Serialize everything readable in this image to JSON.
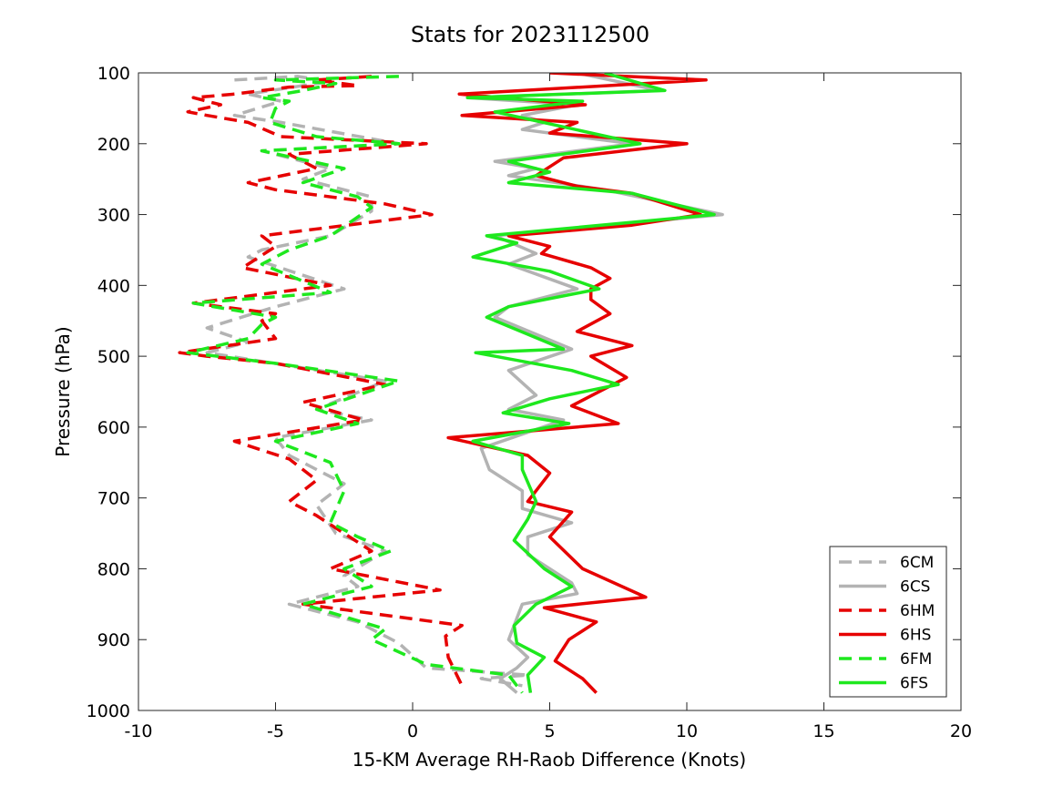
{
  "chart_data": {
    "type": "line",
    "title": "Stats for 2023112500",
    "xlabel": "15-KM Average RH-Raob Difference (Knots)",
    "ylabel": "Pressure (hPa)",
    "xlim": [
      -10,
      20
    ],
    "ylim": [
      1000,
      100
    ],
    "y_reversed": true,
    "grid": false,
    "legend_position": "bottom-right",
    "xticks": [
      -10,
      -5,
      0,
      5,
      10,
      15,
      20
    ],
    "xtick_labels": [
      "-10",
      "-5",
      "0",
      "5",
      "10",
      "15",
      "20"
    ],
    "yticks": [
      100,
      200,
      300,
      400,
      500,
      600,
      700,
      800,
      900,
      1000
    ],
    "ytick_labels": [
      "100",
      "200",
      "300",
      "400",
      "500",
      "600",
      "700",
      "800",
      "900",
      "1000"
    ],
    "series": [
      {
        "name": "6CM",
        "color": "#b3b3b3",
        "dashed": true,
        "points": [
          [
            -6.5,
            110
          ],
          [
            -4.2,
            105
          ],
          [
            -3,
            112
          ],
          [
            -6,
            130
          ],
          [
            -4.8,
            140
          ],
          [
            -6.5,
            160
          ],
          [
            -4.8,
            170
          ],
          [
            -0.5,
            200
          ],
          [
            -5.5,
            210
          ],
          [
            -3,
            235
          ],
          [
            -4,
            250
          ],
          [
            -1.5,
            275
          ],
          [
            -1.5,
            295
          ],
          [
            -3,
            330
          ],
          [
            -5.5,
            350
          ],
          [
            -6,
            360
          ],
          [
            -2.5,
            405
          ],
          [
            -5,
            430
          ],
          [
            -7.5,
            460
          ],
          [
            -6,
            480
          ],
          [
            -7.5,
            495
          ],
          [
            -1,
            535
          ],
          [
            -3.5,
            575
          ],
          [
            -1.5,
            590
          ],
          [
            -5,
            615
          ],
          [
            -4.5,
            640
          ],
          [
            -2.5,
            680
          ],
          [
            -3.5,
            710
          ],
          [
            -2.8,
            750
          ],
          [
            -1,
            775
          ],
          [
            -2.5,
            810
          ],
          [
            -2,
            825
          ],
          [
            -4.5,
            850
          ],
          [
            -2,
            875
          ],
          [
            -0.5,
            905
          ],
          [
            0.5,
            940
          ],
          [
            4.2,
            950
          ],
          [
            2.5,
            955
          ],
          [
            4,
            965
          ]
        ]
      },
      {
        "name": "6CS",
        "color": "#b3b3b3",
        "dashed": false,
        "points": [
          [
            6,
            100
          ],
          [
            9,
            125
          ],
          [
            2,
            135
          ],
          [
            6,
            145
          ],
          [
            4,
            160
          ],
          [
            4.8,
            170
          ],
          [
            4,
            180
          ],
          [
            8,
            200
          ],
          [
            3,
            225
          ],
          [
            4.5,
            235
          ],
          [
            3.5,
            245
          ],
          [
            7,
            265
          ],
          [
            11.3,
            300
          ],
          [
            3,
            330
          ],
          [
            4.5,
            355
          ],
          [
            3.5,
            370
          ],
          [
            6,
            405
          ],
          [
            3.5,
            430
          ],
          [
            3,
            445
          ],
          [
            5.8,
            490
          ],
          [
            3.5,
            520
          ],
          [
            4.5,
            555
          ],
          [
            3.5,
            575
          ],
          [
            5.5,
            590
          ],
          [
            2.5,
            630
          ],
          [
            2.8,
            660
          ],
          [
            4,
            690
          ],
          [
            4,
            715
          ],
          [
            5.8,
            735
          ],
          [
            4.2,
            755
          ],
          [
            4.2,
            780
          ],
          [
            5.8,
            820
          ],
          [
            6,
            835
          ],
          [
            4,
            850
          ],
          [
            3.5,
            900
          ],
          [
            4.2,
            925
          ],
          [
            3.8,
            940
          ],
          [
            3.2,
            955
          ],
          [
            3.8,
            975
          ]
        ]
      },
      {
        "name": "6HM",
        "color": "#e60000",
        "dashed": true,
        "points": [
          [
            -1.5,
            105
          ],
          [
            -3.5,
            110
          ],
          [
            -2,
            118
          ],
          [
            -4.5,
            120
          ],
          [
            -6.5,
            130
          ],
          [
            -8,
            135
          ],
          [
            -7,
            145
          ],
          [
            -8.2,
            155
          ],
          [
            -7.5,
            160
          ],
          [
            -6,
            170
          ],
          [
            -4.8,
            190
          ],
          [
            0.5,
            200
          ],
          [
            -4.5,
            215
          ],
          [
            -4,
            225
          ],
          [
            -3.5,
            235
          ],
          [
            -6,
            255
          ],
          [
            -5,
            265
          ],
          [
            -1,
            285
          ],
          [
            0.7,
            300
          ],
          [
            -5.5,
            330
          ],
          [
            -5,
            345
          ],
          [
            -6.2,
            375
          ],
          [
            -3,
            400
          ],
          [
            -8,
            425
          ],
          [
            -5,
            440
          ],
          [
            -5.5,
            450
          ],
          [
            -5,
            475
          ],
          [
            -8.5,
            495
          ],
          [
            -7.5,
            500
          ],
          [
            -5,
            510
          ],
          [
            -1,
            540
          ],
          [
            -4,
            565
          ],
          [
            -1.8,
            590
          ],
          [
            -6.5,
            620
          ],
          [
            -4.5,
            645
          ],
          [
            -3.5,
            675
          ],
          [
            -4.5,
            705
          ],
          [
            -3.5,
            725
          ],
          [
            -1.5,
            775
          ],
          [
            -3,
            800
          ],
          [
            1,
            830
          ],
          [
            -4,
            850
          ],
          [
            1.8,
            880
          ],
          [
            1.2,
            895
          ],
          [
            1.3,
            925
          ],
          [
            1.8,
            965
          ]
        ]
      },
      {
        "name": "6HS",
        "color": "#e60000",
        "dashed": false,
        "points": [
          [
            5,
            100
          ],
          [
            10.7,
            110
          ],
          [
            1.7,
            130
          ],
          [
            6.3,
            145
          ],
          [
            1.8,
            160
          ],
          [
            6,
            170
          ],
          [
            5,
            185
          ],
          [
            10,
            200
          ],
          [
            5.5,
            220
          ],
          [
            4.5,
            245
          ],
          [
            6,
            260
          ],
          [
            8,
            270
          ],
          [
            10.5,
            300
          ],
          [
            8,
            315
          ],
          [
            3.5,
            330
          ],
          [
            5,
            345
          ],
          [
            4.7,
            355
          ],
          [
            6.5,
            375
          ],
          [
            7.2,
            390
          ],
          [
            6.5,
            405
          ],
          [
            6.5,
            420
          ],
          [
            7.2,
            440
          ],
          [
            6,
            465
          ],
          [
            8,
            485
          ],
          [
            6.5,
            500
          ],
          [
            7.8,
            530
          ],
          [
            5.8,
            570
          ],
          [
            7.5,
            595
          ],
          [
            1.3,
            615
          ],
          [
            4.2,
            640
          ],
          [
            5,
            665
          ],
          [
            4.2,
            705
          ],
          [
            5.8,
            720
          ],
          [
            5,
            755
          ],
          [
            6.2,
            800
          ],
          [
            8.5,
            840
          ],
          [
            4.8,
            855
          ],
          [
            6.7,
            875
          ],
          [
            5.7,
            900
          ],
          [
            5.2,
            930
          ],
          [
            6.2,
            955
          ],
          [
            6.7,
            975
          ]
        ]
      },
      {
        "name": "6FM",
        "color": "#1ee81e",
        "dashed": true,
        "points": [
          [
            -0.5,
            105
          ],
          [
            -5,
            110
          ],
          [
            -2.8,
            115
          ],
          [
            -4,
            125
          ],
          [
            -5.5,
            135
          ],
          [
            -4.5,
            140
          ],
          [
            -5,
            150
          ],
          [
            -5.2,
            170
          ],
          [
            -3.5,
            190
          ],
          [
            -0.5,
            200
          ],
          [
            -5.5,
            210
          ],
          [
            -2.5,
            235
          ],
          [
            -4,
            255
          ],
          [
            -2,
            275
          ],
          [
            -1.5,
            290
          ],
          [
            -3,
            330
          ],
          [
            -4.5,
            350
          ],
          [
            -5.5,
            370
          ],
          [
            -3,
            410
          ],
          [
            -8,
            425
          ],
          [
            -5,
            445
          ],
          [
            -5.5,
            455
          ],
          [
            -6,
            475
          ],
          [
            -8.2,
            495
          ],
          [
            -5,
            510
          ],
          [
            -0.5,
            535
          ],
          [
            -3.5,
            575
          ],
          [
            -2,
            595
          ],
          [
            -5,
            620
          ],
          [
            -3,
            650
          ],
          [
            -2.5,
            690
          ],
          [
            -3,
            735
          ],
          [
            -2,
            755
          ],
          [
            -0.8,
            775
          ],
          [
            -2.5,
            800
          ],
          [
            -1.5,
            825
          ],
          [
            -4,
            850
          ],
          [
            -1,
            885
          ],
          [
            -1.5,
            900
          ],
          [
            0.5,
            935
          ],
          [
            3.5,
            950
          ],
          [
            4,
            975
          ]
        ]
      },
      {
        "name": "6FS",
        "color": "#1ee81e",
        "dashed": false,
        "points": [
          [
            7,
            100
          ],
          [
            9.2,
            125
          ],
          [
            2,
            135
          ],
          [
            6.2,
            140
          ],
          [
            3,
            155
          ],
          [
            8.3,
            200
          ],
          [
            3.5,
            225
          ],
          [
            5,
            240
          ],
          [
            3.5,
            255
          ],
          [
            8,
            270
          ],
          [
            11,
            300
          ],
          [
            5.5,
            320
          ],
          [
            2.7,
            330
          ],
          [
            3.8,
            340
          ],
          [
            2.2,
            360
          ],
          [
            5,
            380
          ],
          [
            6.8,
            405
          ],
          [
            3.5,
            430
          ],
          [
            2.7,
            445
          ],
          [
            5.5,
            490
          ],
          [
            2.3,
            495
          ],
          [
            5.8,
            520
          ],
          [
            7.5,
            540
          ],
          [
            5,
            560
          ],
          [
            3.3,
            580
          ],
          [
            5.7,
            595
          ],
          [
            2.2,
            620
          ],
          [
            4,
            640
          ],
          [
            4,
            660
          ],
          [
            4.5,
            705
          ],
          [
            4.2,
            730
          ],
          [
            3.7,
            760
          ],
          [
            4.8,
            800
          ],
          [
            5.8,
            825
          ],
          [
            4.5,
            850
          ],
          [
            3.7,
            880
          ],
          [
            3.8,
            905
          ],
          [
            4.8,
            925
          ],
          [
            4.2,
            950
          ],
          [
            4.3,
            975
          ]
        ]
      }
    ]
  }
}
